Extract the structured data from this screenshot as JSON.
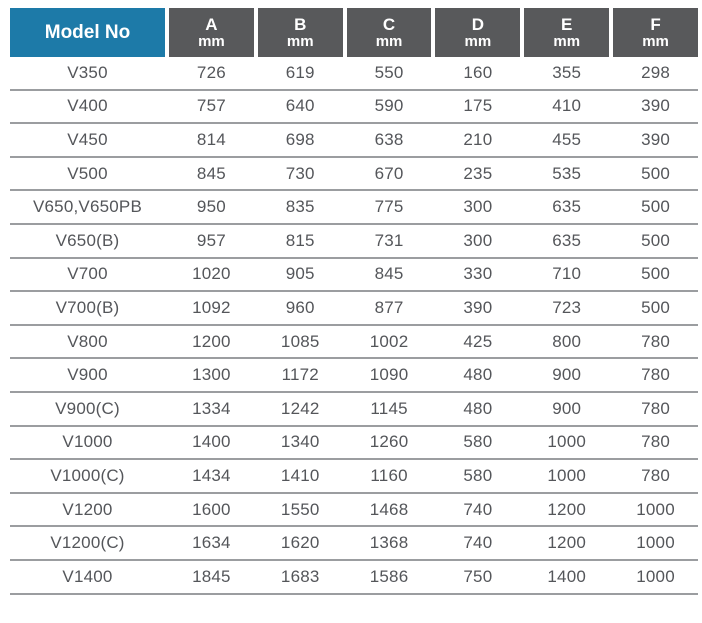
{
  "table": {
    "header": {
      "model_col": "Model No",
      "dim_cols": [
        {
          "letter": "A",
          "unit": "mm"
        },
        {
          "letter": "B",
          "unit": "mm"
        },
        {
          "letter": "C",
          "unit": "mm"
        },
        {
          "letter": "D",
          "unit": "mm"
        },
        {
          "letter": "E",
          "unit": "mm"
        },
        {
          "letter": "F",
          "unit": "mm"
        }
      ]
    },
    "rows": [
      {
        "model": "V350",
        "values": [
          "726",
          "619",
          "550",
          "160",
          "355",
          "298"
        ]
      },
      {
        "model": "V400",
        "values": [
          "757",
          "640",
          "590",
          "175",
          "410",
          "390"
        ]
      },
      {
        "model": "V450",
        "values": [
          "814",
          "698",
          "638",
          "210",
          "455",
          "390"
        ]
      },
      {
        "model": "V500",
        "values": [
          "845",
          "730",
          "670",
          "235",
          "535",
          "500"
        ]
      },
      {
        "model": "V650,V650PB",
        "values": [
          "950",
          "835",
          "775",
          "300",
          "635",
          "500"
        ]
      },
      {
        "model": "V650(B)",
        "values": [
          "957",
          "815",
          "731",
          "300",
          "635",
          "500"
        ]
      },
      {
        "model": "V700",
        "values": [
          "1020",
          "905",
          "845",
          "330",
          "710",
          "500"
        ]
      },
      {
        "model": "V700(B)",
        "values": [
          "1092",
          "960",
          "877",
          "390",
          "723",
          "500"
        ]
      },
      {
        "model": "V800",
        "values": [
          "1200",
          "1085",
          "1002",
          "425",
          "800",
          "780"
        ]
      },
      {
        "model": "V900",
        "values": [
          "1300",
          "1172",
          "1090",
          "480",
          "900",
          "780"
        ]
      },
      {
        "model": "V900(C)",
        "values": [
          "1334",
          "1242",
          "1145",
          "480",
          "900",
          "780"
        ]
      },
      {
        "model": "V1000",
        "values": [
          "1400",
          "1340",
          "1260",
          "580",
          "1000",
          "780"
        ]
      },
      {
        "model": "V1000(C)",
        "values": [
          "1434",
          "1410",
          "1160",
          "580",
          "1000",
          "780"
        ]
      },
      {
        "model": "V1200",
        "values": [
          "1600",
          "1550",
          "1468",
          "740",
          "1200",
          "1000"
        ]
      },
      {
        "model": "V1200(C)",
        "values": [
          "1634",
          "1620",
          "1368",
          "740",
          "1200",
          "1000"
        ]
      },
      {
        "model": "V1400",
        "values": [
          "1845",
          "1683",
          "1586",
          "750",
          "1400",
          "1000"
        ]
      }
    ],
    "colors": {
      "model_header_bg": "#1d7aa8",
      "dim_header_bg": "#58595b",
      "header_text": "#ffffff",
      "data_text": "#54565a",
      "row_rule": "#9b9da0"
    }
  }
}
